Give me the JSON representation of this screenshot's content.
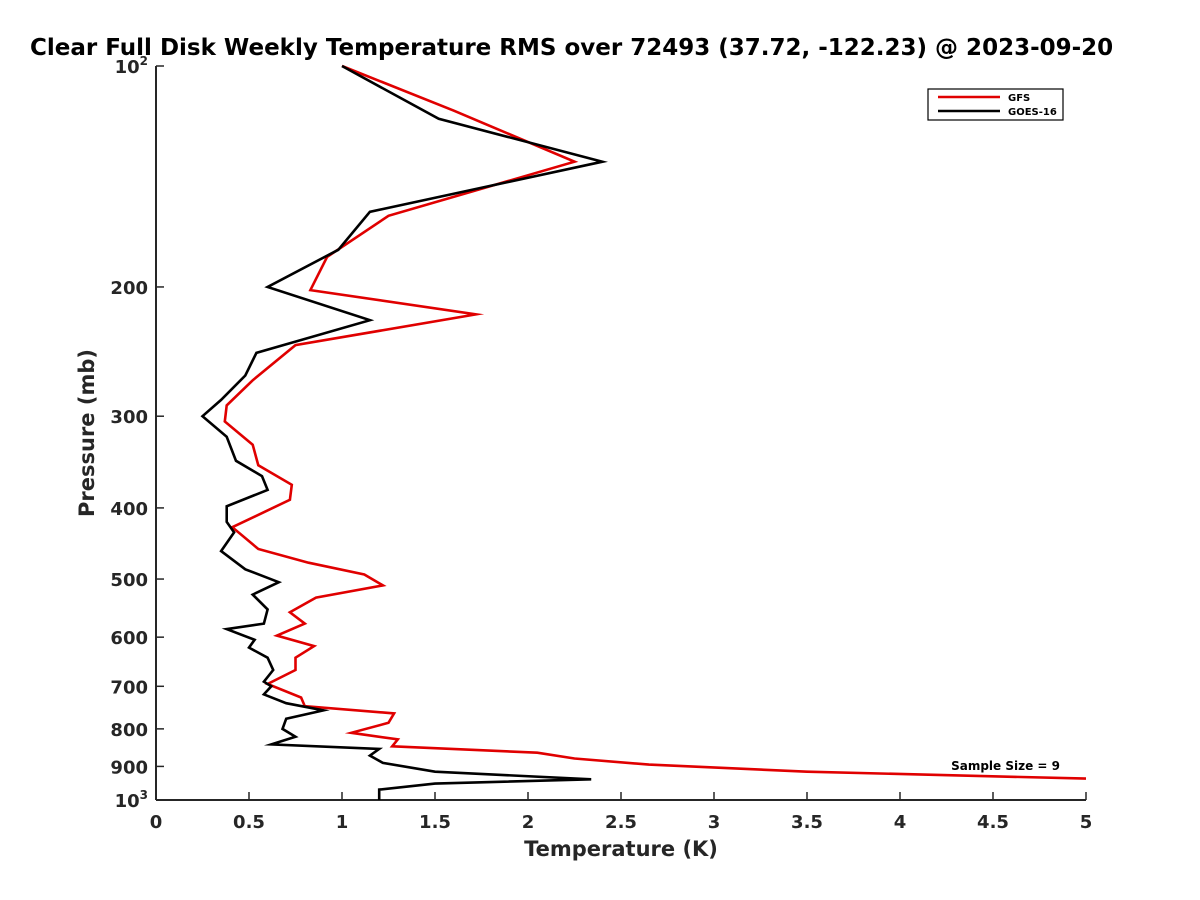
{
  "chart_data": {
    "type": "line",
    "title": "Clear Full Disk Weekly Temperature RMS over 72493 (37.72, -122.23) @ 2023-09-20",
    "xlabel": "Temperature (K)",
    "ylabel": "Pressure (mb)",
    "xlim": [
      0,
      5
    ],
    "ylim": [
      100,
      1000
    ],
    "y_scale": "log",
    "y_reversed": true,
    "grid": false,
    "legend_position": "top-right",
    "x_ticks": [
      "0",
      "0.5",
      "1",
      "1.5",
      "2",
      "2.5",
      "3",
      "3.5",
      "4",
      "4.5",
      "5"
    ],
    "x_tick_values": [
      0,
      0.5,
      1,
      1.5,
      2,
      2.5,
      3,
      3.5,
      4,
      4.5,
      5
    ],
    "y_ticks": [
      {
        "value": 100,
        "base": "10",
        "exp": "2"
      },
      {
        "value": 200,
        "label": "200"
      },
      {
        "value": 300,
        "label": "300"
      },
      {
        "value": 400,
        "label": "400"
      },
      {
        "value": 500,
        "label": "500"
      },
      {
        "value": 600,
        "label": "600"
      },
      {
        "value": 700,
        "label": "700"
      },
      {
        "value": 800,
        "label": "800"
      },
      {
        "value": 900,
        "label": "900"
      },
      {
        "value": 1000,
        "base": "10",
        "exp": "3"
      }
    ],
    "annotation": "Sample Size = 9",
    "series": [
      {
        "name": "GFS",
        "color": "#e00000",
        "points": [
          {
            "x": 1.0,
            "y": 100
          },
          {
            "x": 1.6,
            "y": 115
          },
          {
            "x": 2.25,
            "y": 135
          },
          {
            "x": 1.25,
            "y": 160
          },
          {
            "x": 0.92,
            "y": 182
          },
          {
            "x": 0.83,
            "y": 202
          },
          {
            "x": 1.72,
            "y": 218
          },
          {
            "x": 0.75,
            "y": 240
          },
          {
            "x": 0.52,
            "y": 268
          },
          {
            "x": 0.38,
            "y": 290
          },
          {
            "x": 0.37,
            "y": 305
          },
          {
            "x": 0.52,
            "y": 328
          },
          {
            "x": 0.55,
            "y": 350
          },
          {
            "x": 0.73,
            "y": 372
          },
          {
            "x": 0.72,
            "y": 390
          },
          {
            "x": 0.41,
            "y": 425
          },
          {
            "x": 0.55,
            "y": 455
          },
          {
            "x": 0.82,
            "y": 475
          },
          {
            "x": 1.12,
            "y": 493
          },
          {
            "x": 1.22,
            "y": 510
          },
          {
            "x": 0.86,
            "y": 530
          },
          {
            "x": 0.72,
            "y": 555
          },
          {
            "x": 0.8,
            "y": 575
          },
          {
            "x": 0.65,
            "y": 597
          },
          {
            "x": 0.85,
            "y": 617
          },
          {
            "x": 0.75,
            "y": 640
          },
          {
            "x": 0.75,
            "y": 665
          },
          {
            "x": 0.6,
            "y": 695
          },
          {
            "x": 0.78,
            "y": 725
          },
          {
            "x": 0.8,
            "y": 745
          },
          {
            "x": 1.28,
            "y": 762
          },
          {
            "x": 1.25,
            "y": 785
          },
          {
            "x": 1.05,
            "y": 810
          },
          {
            "x": 1.3,
            "y": 827
          },
          {
            "x": 1.27,
            "y": 845
          },
          {
            "x": 2.05,
            "y": 862
          },
          {
            "x": 2.25,
            "y": 878
          },
          {
            "x": 2.65,
            "y": 895
          },
          {
            "x": 3.5,
            "y": 915
          },
          {
            "x": 5.0,
            "y": 935
          }
        ]
      },
      {
        "name": "GOES-16",
        "color": "#000000",
        "points": [
          {
            "x": 1.0,
            "y": 100
          },
          {
            "x": 1.52,
            "y": 118
          },
          {
            "x": 2.4,
            "y": 135
          },
          {
            "x": 1.15,
            "y": 158
          },
          {
            "x": 0.98,
            "y": 178
          },
          {
            "x": 0.6,
            "y": 200
          },
          {
            "x": 1.15,
            "y": 222
          },
          {
            "x": 0.54,
            "y": 246
          },
          {
            "x": 0.48,
            "y": 264
          },
          {
            "x": 0.35,
            "y": 285
          },
          {
            "x": 0.25,
            "y": 300
          },
          {
            "x": 0.38,
            "y": 320
          },
          {
            "x": 0.43,
            "y": 345
          },
          {
            "x": 0.57,
            "y": 362
          },
          {
            "x": 0.6,
            "y": 378
          },
          {
            "x": 0.38,
            "y": 398
          },
          {
            "x": 0.38,
            "y": 418
          },
          {
            "x": 0.42,
            "y": 432
          },
          {
            "x": 0.35,
            "y": 458
          },
          {
            "x": 0.48,
            "y": 485
          },
          {
            "x": 0.66,
            "y": 505
          },
          {
            "x": 0.52,
            "y": 525
          },
          {
            "x": 0.6,
            "y": 550
          },
          {
            "x": 0.58,
            "y": 575
          },
          {
            "x": 0.38,
            "y": 585
          },
          {
            "x": 0.53,
            "y": 605
          },
          {
            "x": 0.5,
            "y": 620
          },
          {
            "x": 0.6,
            "y": 640
          },
          {
            "x": 0.63,
            "y": 665
          },
          {
            "x": 0.58,
            "y": 690
          },
          {
            "x": 0.62,
            "y": 700
          },
          {
            "x": 0.58,
            "y": 718
          },
          {
            "x": 0.7,
            "y": 738
          },
          {
            "x": 0.9,
            "y": 755
          },
          {
            "x": 0.7,
            "y": 775
          },
          {
            "x": 0.68,
            "y": 800
          },
          {
            "x": 0.75,
            "y": 820
          },
          {
            "x": 0.62,
            "y": 840
          },
          {
            "x": 1.2,
            "y": 852
          },
          {
            "x": 1.15,
            "y": 870
          },
          {
            "x": 1.22,
            "y": 890
          },
          {
            "x": 1.5,
            "y": 915
          },
          {
            "x": 2.34,
            "y": 937
          },
          {
            "x": 1.5,
            "y": 950
          },
          {
            "x": 1.2,
            "y": 968
          },
          {
            "x": 1.2,
            "y": 1000
          }
        ]
      }
    ]
  }
}
